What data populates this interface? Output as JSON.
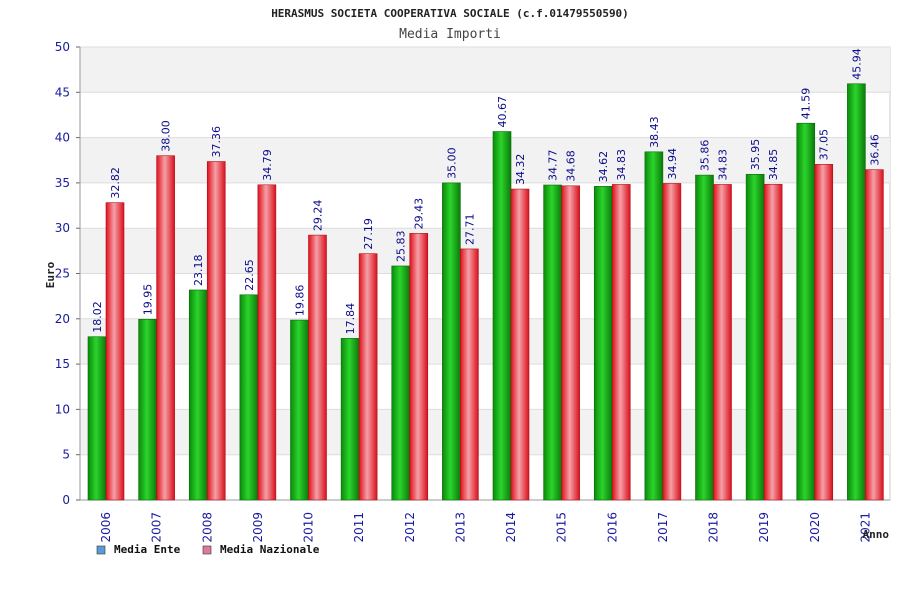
{
  "chart_data": {
    "type": "bar",
    "title": "HERASMUS SOCIETA COOPERATIVA SOCIALE (c.f.01479550590)",
    "subtitle": "Media Importi",
    "xlabel": "Anno",
    "ylabel": "Euro",
    "ylim": [
      0,
      50
    ],
    "yticks": [
      "0",
      "5",
      "10",
      "15",
      "20",
      "25",
      "30",
      "35",
      "40",
      "45",
      "50"
    ],
    "categories": [
      "2006",
      "2007",
      "2008",
      "2009",
      "2010",
      "2011",
      "2012",
      "2013",
      "2014",
      "2015",
      "2016",
      "2017",
      "2018",
      "2019",
      "2020",
      "2021"
    ],
    "series": [
      {
        "name": "Media Ente",
        "legend_color": "#5b9bd5",
        "bar_color": "#13b013",
        "values": [
          18.02,
          19.95,
          23.18,
          22.65,
          19.86,
          17.84,
          25.83,
          35.0,
          40.67,
          34.77,
          34.62,
          38.43,
          35.86,
          35.95,
          41.59,
          45.94
        ],
        "labels": [
          "18.02",
          "19.95",
          "23.18",
          "22.65",
          "19.86",
          "17.84",
          "25.83",
          "35.00",
          "40.67",
          "34.77",
          "34.62",
          "38.43",
          "35.86",
          "35.95",
          "41.59",
          "45.94"
        ]
      },
      {
        "name": "Media Nazionale",
        "legend_color": "#e07a9a",
        "bar_color": "#e8202a",
        "values": [
          32.82,
          38.0,
          37.36,
          34.79,
          29.24,
          27.19,
          29.43,
          27.71,
          34.32,
          34.68,
          34.83,
          34.94,
          34.83,
          34.85,
          37.05,
          36.46
        ],
        "labels": [
          "32.82",
          "38.00",
          "37.36",
          "34.79",
          "29.24",
          "27.19",
          "29.43",
          "27.71",
          "34.32",
          "34.68",
          "34.83",
          "34.94",
          "34.83",
          "34.85",
          "37.05",
          "36.46"
        ]
      }
    ],
    "grid": true,
    "legend_position": "bottom-left"
  }
}
